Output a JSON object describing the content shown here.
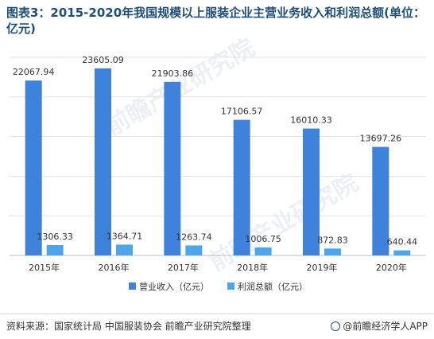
{
  "title": "图表3：2015-2020年我国规模以上服装企业主营业务收入和利润总额(单位：亿元)",
  "chart_data": {
    "type": "bar",
    "categories": [
      "2015年",
      "2016年",
      "2017年",
      "2018年",
      "2019年",
      "2020年"
    ],
    "series": [
      {
        "name": "营业收入（亿元）",
        "color": "#3f82dc",
        "values": [
          22067.94,
          23605.09,
          21903.86,
          17106.57,
          16010.33,
          13697.26
        ],
        "labels": [
          "22067.94",
          "23605.09",
          "21903.86",
          "17106.57",
          "16010.33",
          "13697.26"
        ]
      },
      {
        "name": "利润总额（亿元）",
        "color": "#4ea6ea",
        "values": [
          1306.33,
          1364.71,
          1263.74,
          1006.75,
          872.83,
          640.44
        ],
        "labels": [
          "1306.33",
          "1364.71",
          "1263.74",
          "1006.75",
          "872.83",
          "640.44"
        ]
      }
    ],
    "ylim": [
      0,
      25000
    ],
    "grid": true,
    "legend": "bottom"
  },
  "watermark": "前瞻产业研究院",
  "footer": {
    "source": "资料来源：国家统计局 中国服装协会 前瞻产业研究院整理",
    "brand": "@前瞻经济学人APP"
  }
}
